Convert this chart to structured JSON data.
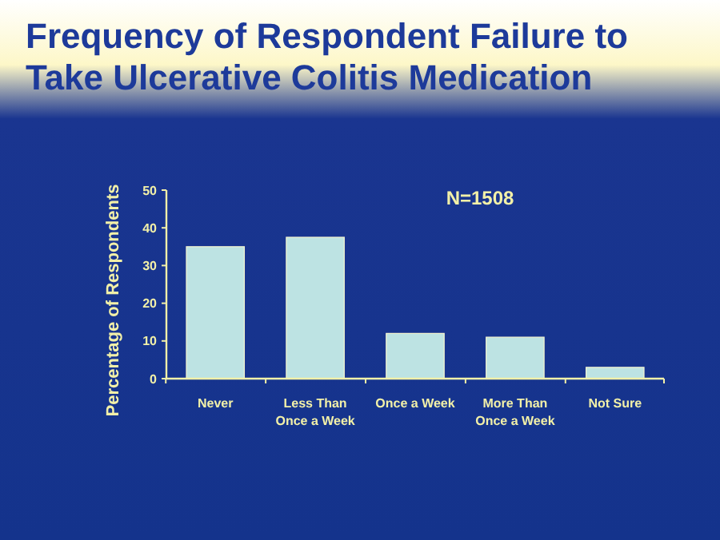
{
  "chart_data": {
    "type": "bar",
    "title": "Frequency of Respondent Failure to Take Ulcerative Colitis Medication",
    "ylabel": "Percentage of Respondents",
    "annotations": [
      "N=1508"
    ],
    "categories": [
      "Never",
      "Less Than Once a Week",
      "Once a Week",
      "More Than Once a Week",
      "Not Sure"
    ],
    "values": [
      35,
      37.5,
      12,
      11,
      3
    ],
    "color": "#bde3e3",
    "ylim": [
      0,
      50
    ],
    "yticks": [
      0,
      10,
      20,
      30,
      40,
      50
    ]
  }
}
